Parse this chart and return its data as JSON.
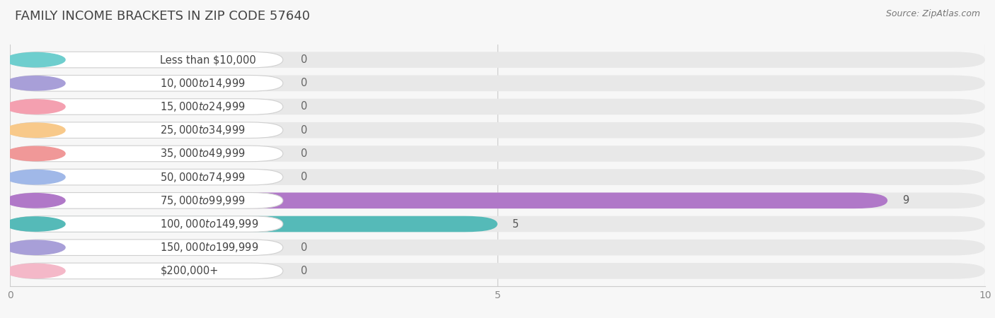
{
  "title": "FAMILY INCOME BRACKETS IN ZIP CODE 57640",
  "source": "Source: ZipAtlas.com",
  "categories": [
    "Less than $10,000",
    "$10,000 to $14,999",
    "$15,000 to $24,999",
    "$25,000 to $34,999",
    "$35,000 to $49,999",
    "$50,000 to $74,999",
    "$75,000 to $99,999",
    "$100,000 to $149,999",
    "$150,000 to $199,999",
    "$200,000+"
  ],
  "values": [
    0,
    0,
    0,
    0,
    0,
    0,
    9,
    5,
    0,
    0
  ],
  "bar_colors": [
    "#6ecece",
    "#a89fd8",
    "#f4a0b0",
    "#f8c98a",
    "#f09898",
    "#a0b8e8",
    "#b078c8",
    "#55bab8",
    "#a89fd8",
    "#f4b8c8"
  ],
  "background_color": "#f7f7f7",
  "row_bg_color": "#efefef",
  "xlim": [
    0,
    10
  ],
  "xticks": [
    0,
    5,
    10
  ],
  "title_fontsize": 13,
  "label_fontsize": 10.5,
  "value_fontsize": 10.5
}
